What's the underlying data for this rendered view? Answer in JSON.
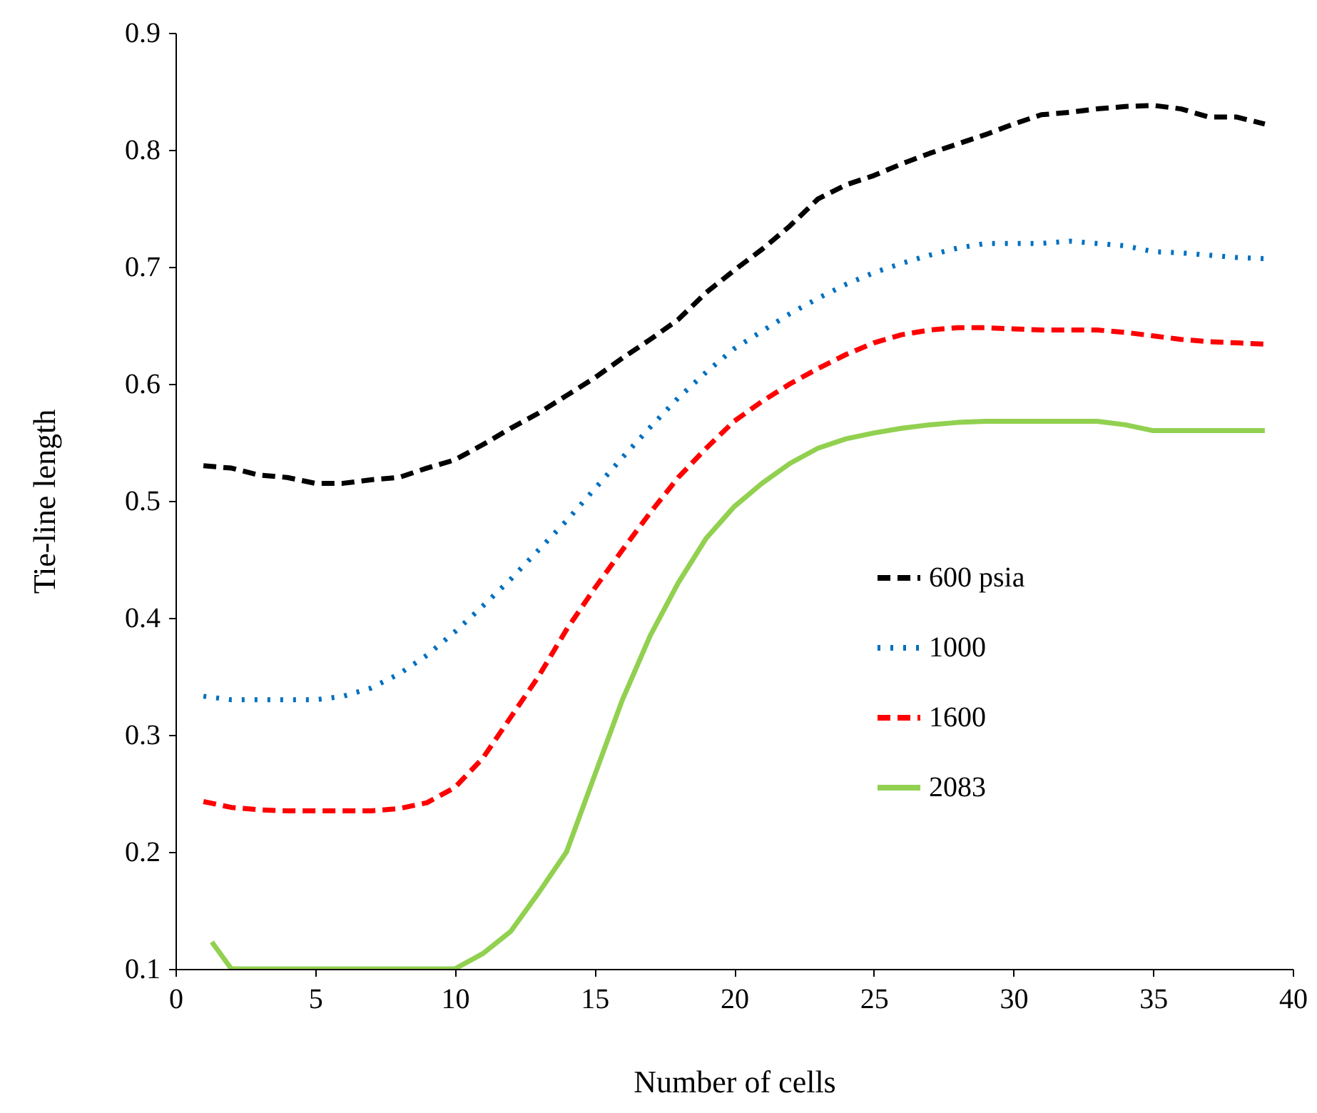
{
  "chart_data": {
    "type": "line",
    "xlabel": "Number of cells",
    "ylabel": "Tie-line  length",
    "x": [
      1,
      2,
      3,
      4,
      5,
      6,
      7,
      8,
      9,
      10,
      11,
      12,
      13,
      14,
      15,
      16,
      17,
      18,
      19,
      20,
      21,
      22,
      23,
      24,
      25,
      26,
      27,
      28,
      29,
      30,
      31,
      32,
      33,
      34,
      35,
      36,
      37,
      38,
      39
    ],
    "series": [
      {
        "name": "600 psia",
        "color": "#000000",
        "line_style": "dashed",
        "values": [
          0.53,
          0.528,
          0.522,
          0.52,
          0.515,
          0.515,
          0.518,
          0.52,
          0.528,
          0.535,
          0.548,
          0.562,
          0.575,
          0.59,
          0.605,
          0.622,
          0.638,
          0.655,
          0.678,
          0.697,
          0.715,
          0.735,
          0.758,
          0.77,
          0.778,
          0.788,
          0.797,
          0.805,
          0.813,
          0.822,
          0.83,
          0.832,
          0.835,
          0.837,
          0.838,
          0.835,
          0.828,
          0.828,
          0.822
        ]
      },
      {
        "name": "1000",
        "color": "#0070c0",
        "line_style": "dotted",
        "values": [
          0.333,
          0.33,
          0.33,
          0.33,
          0.33,
          0.333,
          0.34,
          0.352,
          0.368,
          0.388,
          0.41,
          0.433,
          0.458,
          0.483,
          0.51,
          0.537,
          0.563,
          0.588,
          0.61,
          0.63,
          0.645,
          0.66,
          0.673,
          0.685,
          0.695,
          0.703,
          0.71,
          0.716,
          0.72,
          0.72,
          0.72,
          0.722,
          0.72,
          0.718,
          0.713,
          0.712,
          0.71,
          0.708,
          0.707
        ]
      },
      {
        "name": "1600",
        "color": "#ff0000",
        "line_style": "dashed",
        "values": [
          0.243,
          0.238,
          0.236,
          0.235,
          0.235,
          0.235,
          0.235,
          0.237,
          0.242,
          0.255,
          0.28,
          0.315,
          0.35,
          0.39,
          0.425,
          0.458,
          0.49,
          0.52,
          0.545,
          0.568,
          0.585,
          0.6,
          0.613,
          0.625,
          0.635,
          0.642,
          0.646,
          0.648,
          0.648,
          0.647,
          0.646,
          0.646,
          0.646,
          0.644,
          0.641,
          0.638,
          0.636,
          0.635,
          0.634
        ]
      },
      {
        "name": "2083",
        "color": "#92d050",
        "line_style": "solid",
        "x": [
          1.3,
          2,
          3,
          4,
          5,
          6,
          7,
          8,
          9,
          10,
          11,
          12,
          13,
          14,
          15,
          16,
          17,
          18,
          19,
          20,
          21,
          22,
          23,
          24,
          25,
          26,
          27,
          28,
          29,
          30,
          31,
          32,
          33,
          34,
          35,
          36,
          37,
          38,
          39
        ],
        "values": [
          0.123,
          0.1,
          0.1,
          0.1,
          0.1,
          0.1,
          0.1,
          0.1,
          0.1,
          0.1,
          0.113,
          0.132,
          0.165,
          0.2,
          0.265,
          0.33,
          0.385,
          0.43,
          0.468,
          0.495,
          0.515,
          0.532,
          0.545,
          0.553,
          0.558,
          0.562,
          0.565,
          0.567,
          0.568,
          0.568,
          0.568,
          0.568,
          0.568,
          0.565,
          0.56,
          0.56,
          0.56,
          0.56,
          0.56
        ]
      }
    ],
    "xlim": [
      0,
      40
    ],
    "xticks": [
      0,
      5,
      10,
      15,
      20,
      25,
      30,
      35,
      40
    ],
    "ylim": [
      0.1,
      0.9
    ],
    "yticks": [
      0.1,
      0.2,
      0.3,
      0.4,
      0.5,
      0.6,
      0.7,
      0.8,
      0.9
    ],
    "grid": false,
    "legend": "right",
    "marker": "none"
  }
}
